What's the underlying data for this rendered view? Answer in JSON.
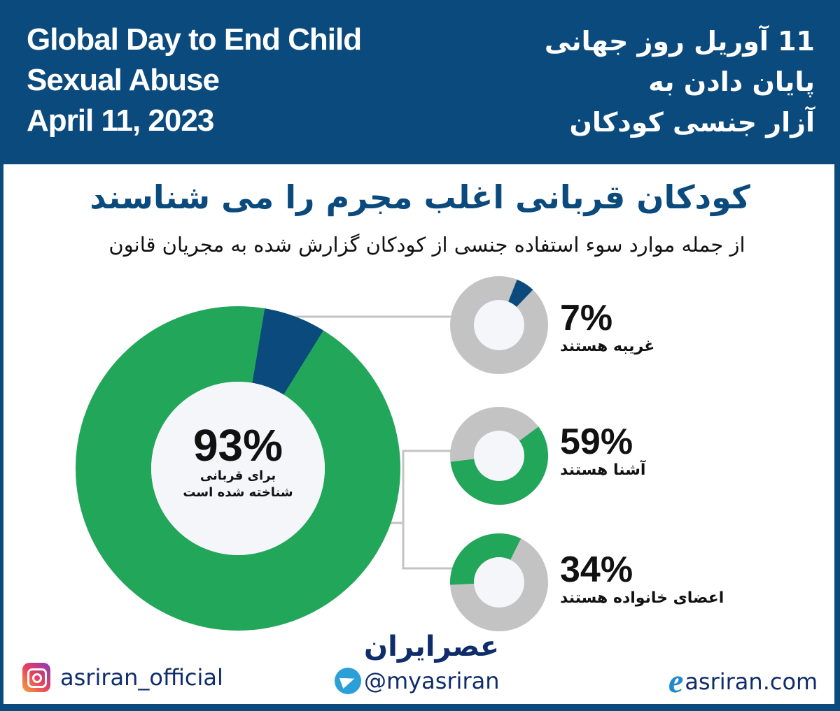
{
  "header": {
    "title_en_lines": [
      "Global Day to End Child",
      "Sexual Abuse",
      "April 11, 2023"
    ],
    "title_fa_lines": [
      "11 آوریل روز جهانی",
      "پایان دادن به",
      "آزار جنسی کودکان"
    ]
  },
  "main": {
    "headline": "کودکان قربانی اغلب مجرم را می شناسند",
    "subheadline": "از جمله موارد سوء استفاده جنسی از کودکان گزارش شده به مجریان قانون"
  },
  "colors": {
    "brand_blue": "#0b4a7d",
    "green": "#21a65a",
    "gray": "#c3c3c3",
    "donut_center": "#f4f6f9"
  },
  "chart_data": {
    "type": "pie",
    "title": "کودکان قربانی اغلب مجرم را می شناسند",
    "subtitle": "از جمله موارد سوء استفاده جنسی از کودکان گزارش شده به مجریان قانون",
    "charts": [
      {
        "name": "main",
        "style": "donut",
        "categories": [
          "شناخته شده برای قربانی",
          "غریبه"
        ],
        "values": [
          93,
          7
        ],
        "label": "93%",
        "caption": [
          "برای قربانی",
          "شناخته شده است"
        ]
      },
      {
        "name": "strangers",
        "style": "donut",
        "categories": [
          "غریبه هستند",
          "other"
        ],
        "values": [
          7,
          93
        ],
        "label": "7%",
        "caption": "غریبه هستند"
      },
      {
        "name": "acquaintances",
        "style": "donut",
        "categories": [
          "آشنا هستند",
          "other"
        ],
        "values": [
          59,
          41
        ],
        "label": "59%",
        "caption": "آشنا هستند"
      },
      {
        "name": "family",
        "style": "donut",
        "categories": [
          "اعضای خانواده هستند",
          "other"
        ],
        "values": [
          34,
          66
        ],
        "label": "34%",
        "caption": "اعضای خانواده هستند"
      }
    ]
  },
  "big_donut": {
    "pct": "93%",
    "line1": "برای قربانی",
    "line2": "شناخته شده است"
  },
  "items": [
    {
      "pct": "7%",
      "label": "غریبه هستند"
    },
    {
      "pct": "59%",
      "label": "آشنا هستند"
    },
    {
      "pct": "34%",
      "label": "اعضای خانواده هستند"
    }
  ],
  "footer": {
    "brand": "عصرایران",
    "instagram": "asriran_official",
    "telegram": "@myasriran",
    "website": "asriran.com",
    "icons": [
      "instagram-icon",
      "telegram-icon",
      "browser-e-icon"
    ]
  }
}
